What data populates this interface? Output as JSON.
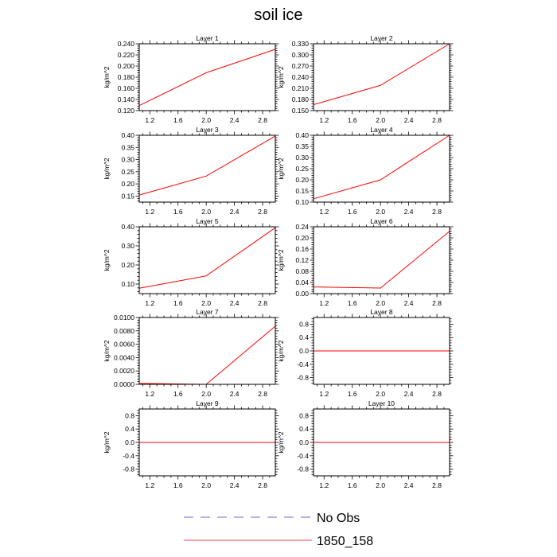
{
  "page_title": "soil ice",
  "legend": {
    "items": [
      {
        "label": "No Obs",
        "style": "dashed",
        "color": "#3b3bb5"
      },
      {
        "label": "1850_158",
        "style": "solid",
        "color": "#ff0000"
      }
    ]
  },
  "colors": {
    "series": "#ff0000",
    "axis": "#000000"
  },
  "chart_data": [
    {
      "type": "line",
      "title": "Layer 1",
      "ylabel": "kg/m^2",
      "xlim": [
        1.05,
        2.98
      ],
      "xticks": [
        "1.2",
        "1.6",
        "2.0",
        "2.4",
        "2.8"
      ],
      "xtick_values": [
        1.2,
        1.6,
        2.0,
        2.4,
        2.8
      ],
      "ylim": [
        0.12,
        0.24
      ],
      "yticks": [
        "0.120",
        "0.140",
        "0.160",
        "0.180",
        "0.200",
        "0.220",
        "0.240"
      ],
      "ytick_values": [
        0.12,
        0.14,
        0.16,
        0.18,
        0.2,
        0.22,
        0.24
      ],
      "series": [
        {
          "name": "1850_158",
          "x": [
            1.05,
            2.0,
            2.98
          ],
          "y": [
            0.129,
            0.188,
            0.23
          ]
        }
      ]
    },
    {
      "type": "line",
      "title": "Layer 2",
      "ylabel": "kg/m^2",
      "xlim": [
        1.05,
        2.98
      ],
      "xticks": [
        "1.2",
        "1.6",
        "2.0",
        "2.4",
        "2.8"
      ],
      "xtick_values": [
        1.2,
        1.6,
        2.0,
        2.4,
        2.8
      ],
      "ylim": [
        0.15,
        0.33
      ],
      "yticks": [
        "0.150",
        "0.180",
        "0.210",
        "0.240",
        "0.270",
        "0.300",
        "0.330"
      ],
      "ytick_values": [
        0.15,
        0.18,
        0.21,
        0.24,
        0.27,
        0.3,
        0.33
      ],
      "series": [
        {
          "name": "1850_158",
          "x": [
            1.05,
            2.0,
            2.98
          ],
          "y": [
            0.166,
            0.218,
            0.33
          ]
        }
      ]
    },
    {
      "type": "line",
      "title": "Layer 3",
      "ylabel": "kg/m^2",
      "xlim": [
        1.05,
        2.98
      ],
      "xticks": [
        "1.2",
        "1.6",
        "2.0",
        "2.4",
        "2.8"
      ],
      "xtick_values": [
        1.2,
        1.6,
        2.0,
        2.4,
        2.8
      ],
      "ylim": [
        0.125,
        0.4
      ],
      "yticks": [
        "0.15",
        "0.20",
        "0.25",
        "0.30",
        "0.35",
        "0.40"
      ],
      "ytick_values": [
        0.15,
        0.2,
        0.25,
        0.3,
        0.35,
        0.4
      ],
      "series": [
        {
          "name": "1850_158",
          "x": [
            1.05,
            2.0,
            2.98
          ],
          "y": [
            0.154,
            0.232,
            0.397
          ]
        }
      ]
    },
    {
      "type": "line",
      "title": "Layer 4",
      "ylabel": "kg/m^2",
      "xlim": [
        1.05,
        2.98
      ],
      "xticks": [
        "1.2",
        "1.6",
        "2.0",
        "2.4",
        "2.8"
      ],
      "xtick_values": [
        1.2,
        1.6,
        2.0,
        2.4,
        2.8
      ],
      "ylim": [
        0.1,
        0.4
      ],
      "yticks": [
        "0.10",
        "0.15",
        "0.20",
        "0.25",
        "0.30",
        "0.35",
        "0.40"
      ],
      "ytick_values": [
        0.1,
        0.15,
        0.2,
        0.25,
        0.3,
        0.35,
        0.4
      ],
      "series": [
        {
          "name": "1850_158",
          "x": [
            1.05,
            2.0,
            2.98
          ],
          "y": [
            0.115,
            0.2,
            0.4
          ]
        }
      ]
    },
    {
      "type": "line",
      "title": "Layer 5",
      "ylabel": "kg/m^2",
      "xlim": [
        1.05,
        2.98
      ],
      "xticks": [
        "1.2",
        "1.6",
        "2.0",
        "2.4",
        "2.8"
      ],
      "xtick_values": [
        1.2,
        1.6,
        2.0,
        2.4,
        2.8
      ],
      "ylim": [
        0.05,
        0.4
      ],
      "yticks": [
        "0.10",
        "0.20",
        "0.30",
        "0.40"
      ],
      "ytick_values": [
        0.1,
        0.2,
        0.3,
        0.4
      ],
      "series": [
        {
          "name": "1850_158",
          "x": [
            1.05,
            2.0,
            2.98
          ],
          "y": [
            0.078,
            0.143,
            0.395
          ]
        }
      ]
    },
    {
      "type": "line",
      "title": "Layer 6",
      "ylabel": "kg/m^2",
      "xlim": [
        1.05,
        2.98
      ],
      "xticks": [
        "1.2",
        "1.6",
        "2.0",
        "2.4",
        "2.8"
      ],
      "xtick_values": [
        1.2,
        1.6,
        2.0,
        2.4,
        2.8
      ],
      "ylim": [
        0.0,
        0.24
      ],
      "yticks": [
        "0.00",
        "0.04",
        "0.08",
        "0.12",
        "0.16",
        "0.20",
        "0.24"
      ],
      "ytick_values": [
        0.0,
        0.04,
        0.08,
        0.12,
        0.16,
        0.2,
        0.24
      ],
      "series": [
        {
          "name": "1850_158",
          "x": [
            1.05,
            2.0,
            2.98
          ],
          "y": [
            0.024,
            0.02,
            0.224
          ]
        }
      ]
    },
    {
      "type": "line",
      "title": "Layer 7",
      "ylabel": "kg/m^2",
      "xlim": [
        1.05,
        2.98
      ],
      "xticks": [
        "1.2",
        "1.6",
        "2.0",
        "2.4",
        "2.8"
      ],
      "xtick_values": [
        1.2,
        1.6,
        2.0,
        2.4,
        2.8
      ],
      "ylim": [
        0.0,
        0.01
      ],
      "yticks": [
        "0.0000",
        "0.0020",
        "0.0040",
        "0.0060",
        "0.0080",
        "0.0100"
      ],
      "ytick_values": [
        0.0,
        0.002,
        0.004,
        0.006,
        0.008,
        0.01
      ],
      "series": [
        {
          "name": "1850_158",
          "x": [
            1.05,
            2.0,
            2.98
          ],
          "y": [
            0.00015,
            0.0,
            0.0087
          ]
        }
      ]
    },
    {
      "type": "line",
      "title": "Layer 8",
      "ylabel": "kg/m^2",
      "xlim": [
        1.05,
        2.98
      ],
      "xticks": [
        "1.2",
        "1.6",
        "2.0",
        "2.4",
        "2.8"
      ],
      "xtick_values": [
        1.2,
        1.6,
        2.0,
        2.4,
        2.8
      ],
      "ylim": [
        -1.0,
        1.0
      ],
      "yticks": [
        "-0.8",
        "-0.4",
        "0.0",
        "0.4",
        "0.8"
      ],
      "ytick_values": [
        -0.8,
        -0.4,
        0.0,
        0.4,
        0.8
      ],
      "series": [
        {
          "name": "1850_158",
          "x": [
            1.05,
            2.98
          ],
          "y": [
            0.0,
            0.0
          ]
        }
      ]
    },
    {
      "type": "line",
      "title": "Layer 9",
      "ylabel": "kg/m^2",
      "xlim": [
        1.05,
        2.98
      ],
      "xticks": [
        "1.2",
        "1.6",
        "2.0",
        "2.4",
        "2.8"
      ],
      "xtick_values": [
        1.2,
        1.6,
        2.0,
        2.4,
        2.8
      ],
      "ylim": [
        -1.0,
        1.0
      ],
      "yticks": [
        "-0.8",
        "-0.4",
        "0.0",
        "0.4",
        "0.8"
      ],
      "ytick_values": [
        -0.8,
        -0.4,
        0.0,
        0.4,
        0.8
      ],
      "series": [
        {
          "name": "1850_158",
          "x": [
            1.05,
            2.98
          ],
          "y": [
            0.0,
            0.0
          ]
        }
      ]
    },
    {
      "type": "line",
      "title": "Layer 10",
      "ylabel": "kg/m^2",
      "xlim": [
        1.05,
        2.98
      ],
      "xticks": [
        "1.2",
        "1.6",
        "2.0",
        "2.4",
        "2.8"
      ],
      "xtick_values": [
        1.2,
        1.6,
        2.0,
        2.4,
        2.8
      ],
      "ylim": [
        -1.0,
        1.0
      ],
      "yticks": [
        "-0.8",
        "-0.4",
        "0.0",
        "0.4",
        "0.8"
      ],
      "ytick_values": [
        -0.8,
        -0.4,
        0.0,
        0.4,
        0.8
      ],
      "series": [
        {
          "name": "1850_158",
          "x": [
            1.05,
            2.98
          ],
          "y": [
            0.0,
            0.0
          ]
        }
      ]
    }
  ]
}
